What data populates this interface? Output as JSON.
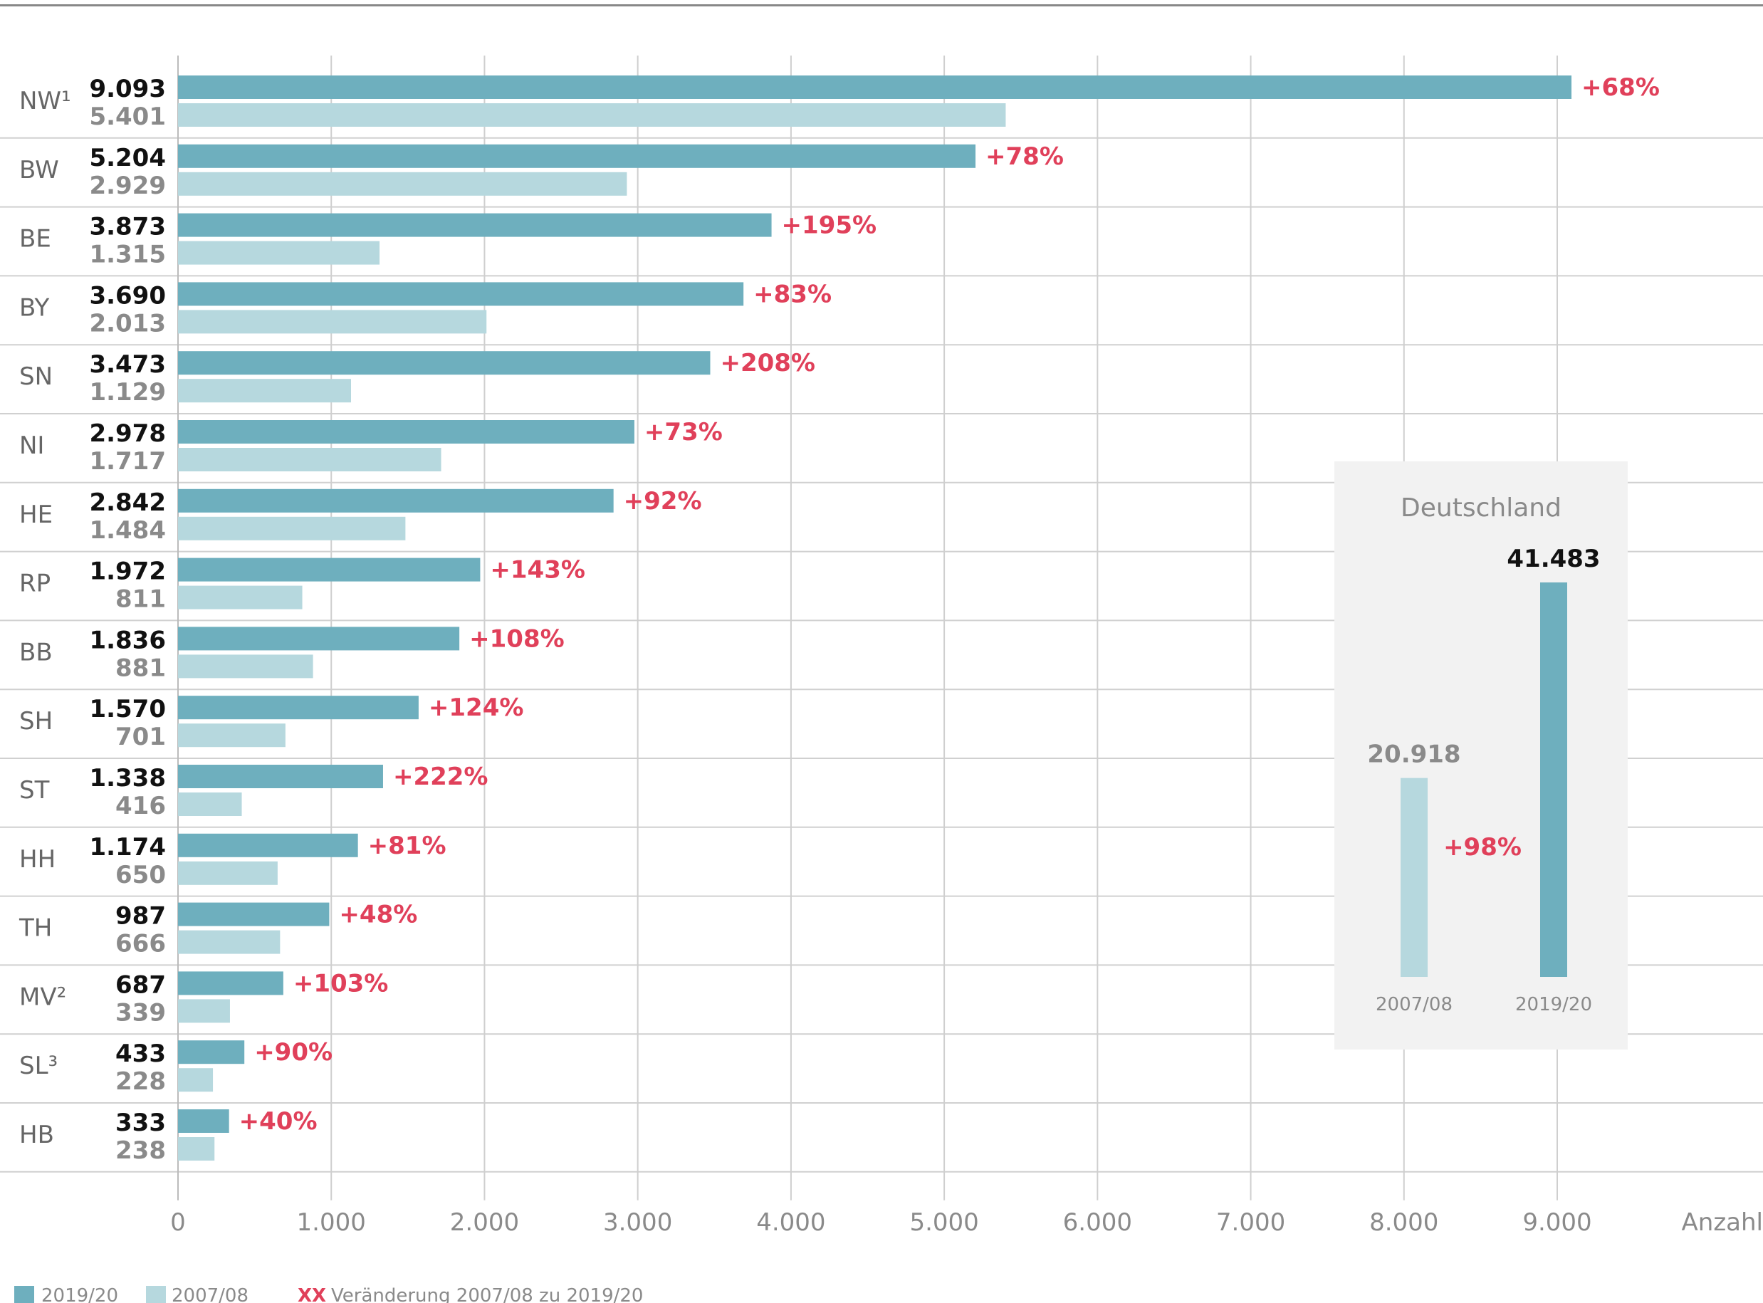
{
  "chart_data": [
    {
      "type": "bar",
      "orientation": "horizontal",
      "categories": [
        "NW¹",
        "BW",
        "BE",
        "BY",
        "SN",
        "NI",
        "HE",
        "RP",
        "BB",
        "SH",
        "ST",
        "HH",
        "TH",
        "MV²",
        "SL³",
        "HB"
      ],
      "series": [
        {
          "name": "2019/20",
          "color": "#6eafbe",
          "values": [
            9093,
            5204,
            3873,
            3690,
            3473,
            2978,
            2842,
            1972,
            1836,
            1570,
            1338,
            1174,
            987,
            687,
            433,
            333
          ],
          "labels": [
            "9.093",
            "5.204",
            "3.873",
            "3.690",
            "3.473",
            "2.978",
            "2.842",
            "1.972",
            "1.836",
            "1.570",
            "1.338",
            "1.174",
            "987",
            "687",
            "433",
            "333"
          ]
        },
        {
          "name": "2007/08",
          "color": "#b6d8de",
          "values": [
            5401,
            2929,
            1315,
            2013,
            1129,
            1717,
            1484,
            811,
            881,
            701,
            416,
            650,
            666,
            339,
            228,
            238
          ],
          "labels": [
            "5.401",
            "2.929",
            "1.315",
            "2.013",
            "1.129",
            "1.717",
            "1.484",
            "811",
            "881",
            "701",
            "416",
            "650",
            "666",
            "339",
            "228",
            "238"
          ]
        }
      ],
      "changes": [
        "+68%",
        "+78%",
        "+195%",
        "+83%",
        "+208%",
        "+73%",
        "+92%",
        "+143%",
        "+108%",
        "+124%",
        "+222%",
        "+81%",
        "+48%",
        "+103%",
        "+90%",
        "+40%"
      ],
      "xlim": [
        0,
        9000
      ],
      "xticks": [
        0,
        1000,
        2000,
        3000,
        4000,
        5000,
        6000,
        7000,
        8000,
        9000
      ],
      "xtick_labels": [
        "0",
        "1.000",
        "2.000",
        "3.000",
        "4.000",
        "5.000",
        "6.000",
        "7.000",
        "8.000",
        "9.000"
      ],
      "xlabel": "Anzahl",
      "grid": true
    },
    {
      "type": "bar",
      "title": "Deutschland",
      "categories": [
        "2007/08",
        "2019/20"
      ],
      "values": [
        20918,
        41483
      ],
      "labels": [
        "20.918",
        "41.483"
      ],
      "change": "+98%",
      "colors": [
        "#b6d8de",
        "#6eafbe"
      ]
    }
  ],
  "legend": {
    "position": "bottom-left",
    "items": [
      {
        "label": "2019/20",
        "color": "#6eafbe"
      },
      {
        "label": "2007/08",
        "color": "#b6d8de"
      }
    ],
    "change_key": "XX",
    "change_text": "Veränderung 2007/08 zu 2019/20"
  },
  "colors": {
    "current": "#6eafbe",
    "previous": "#b6d8de",
    "change": "#e0405a",
    "inset_bg": "#f2f2f2"
  }
}
